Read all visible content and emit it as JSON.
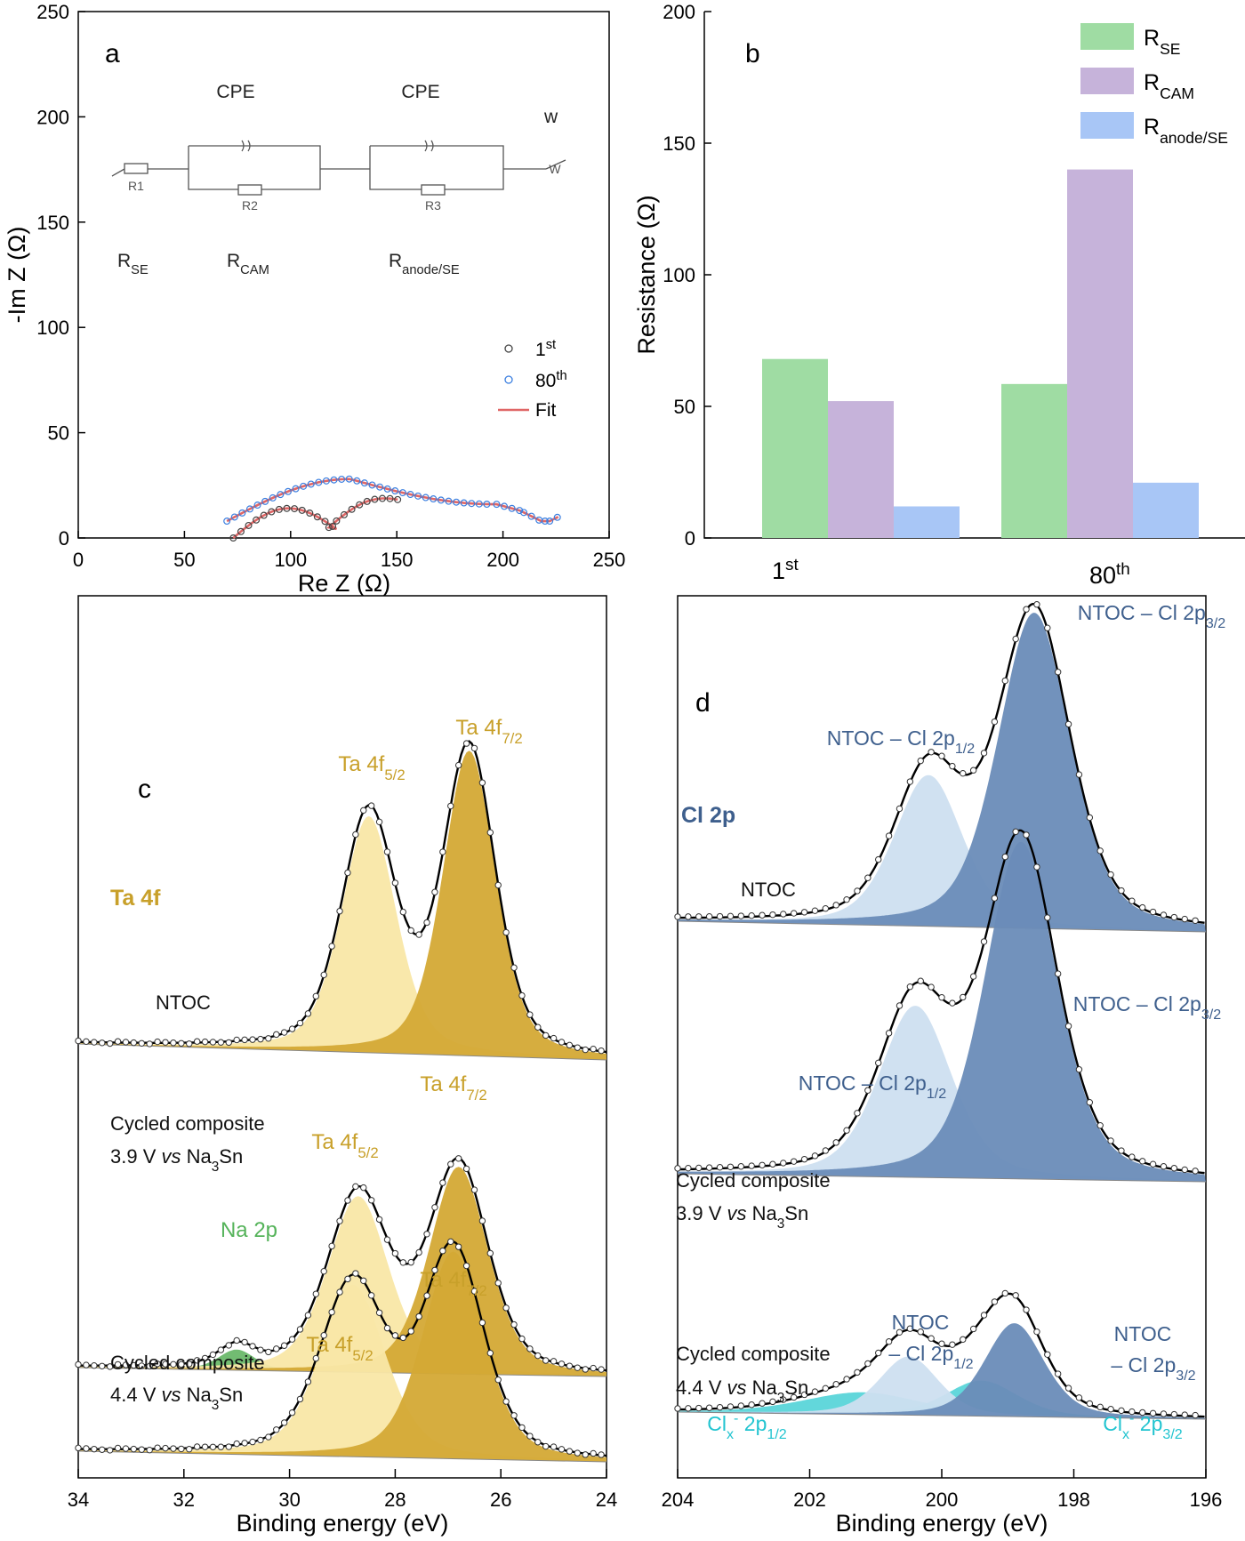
{
  "colors": {
    "se": "#9fdca3",
    "cam": "#c6b3da",
    "anode": "#a8c6f6",
    "ta_dark": "#d4a935",
    "ta_light": "#f9e7a6",
    "ta_label": "#c8a02a",
    "cl_dark": "#6a8cb8",
    "cl_light": "#cddff0",
    "cl_label": "#3e5f8d",
    "clx": "#2ec9cf",
    "clx_label": "#22c4d0",
    "na": "#6ab86a",
    "na_label": "#55b35a",
    "fit": "#e06666",
    "first": "#444444",
    "eightieth": "#3b7fe0"
  },
  "chart_data": [
    {
      "panel": "a",
      "type": "scatter",
      "xlabel": "Re Z (Ω)",
      "ylabel": "-Im Z (Ω)",
      "xlim": [
        0,
        250
      ],
      "ylim": [
        0,
        250
      ],
      "xticks": [
        "0",
        "50",
        "100",
        "150",
        "200",
        "250"
      ],
      "yticks": [
        "0",
        "50",
        "100",
        "150",
        "200",
        "250"
      ],
      "circuit": {
        "top_labels": [
          "CPE",
          "CPE",
          "w"
        ],
        "element_labels": [
          "R1",
          "R2",
          "R3",
          "W"
        ],
        "bottom_labels": [
          "R",
          "SE",
          "R",
          "CAM",
          "R",
          "anode/SE"
        ]
      },
      "legend": [
        {
          "name": "1",
          "sup": "st"
        },
        {
          "name": "80",
          "sup": "th"
        },
        {
          "name": "Fit"
        }
      ],
      "series": [
        {
          "name": "1st",
          "arc1": {
            "x0": 73,
            "x1": 122,
            "h": 12
          },
          "arc2": {
            "x0": 118,
            "x1": 152,
            "h": 12
          },
          "tail_x": 153
        },
        {
          "name": "80th",
          "arc": {
            "x0": 70,
            "x1": 222,
            "h": 28,
            "peak": 128
          },
          "tail": [
            [
              197,
              16
            ],
            [
              208,
              13
            ],
            [
              218,
              8
            ],
            [
              222,
              8
            ],
            [
              226,
              10
            ]
          ]
        }
      ]
    },
    {
      "panel": "b",
      "type": "bar",
      "ylabel": "Resistance (Ω)",
      "ylim": [
        0,
        200
      ],
      "yticks": [
        "0",
        "50",
        "100",
        "150",
        "200"
      ],
      "categories": [
        {
          "name": "1",
          "sup": "st"
        },
        {
          "name": "80",
          "sup": "th"
        }
      ],
      "series": [
        {
          "name": "R",
          "sub": "SE",
          "values": [
            68,
            58.5
          ]
        },
        {
          "name": "R",
          "sub": "CAM",
          "values": [
            52,
            140
          ]
        },
        {
          "name": "R",
          "sub": "anode/SE",
          "values": [
            12,
            21
          ]
        }
      ]
    },
    {
      "panel": "c",
      "type": "line",
      "title": "Ta 4f",
      "xlabel": "Binding energy (eV)",
      "xlim": [
        34,
        24
      ],
      "xticks": [
        "34",
        "32",
        "30",
        "28",
        "26",
        "24"
      ],
      "spectra": [
        {
          "sample": "NTOC",
          "peaks": [
            {
              "label": "Ta 4f",
              "sub": "5/2",
              "center": 28.5,
              "height": 1.0
            },
            {
              "label": "Ta 4f",
              "sub": "7/2",
              "center": 26.6,
              "height": 1.29
            }
          ]
        },
        {
          "sample": [
            "Cycled composite",
            "3.9 V vs Na",
            "3",
            "Sn"
          ],
          "peaks": [
            {
              "label": "Na 2p",
              "center": 31.0,
              "height": 0.1
            },
            {
              "label": "Ta 4f",
              "sub": "5/2",
              "center": 28.7,
              "height": 0.85
            },
            {
              "label": "Ta 4f",
              "sub": "7/2",
              "center": 26.8,
              "height": 1.0
            }
          ]
        },
        {
          "sample": [
            "Cycled composite",
            "4.4 V vs Na",
            "3",
            "Sn"
          ],
          "peaks": [
            {
              "label": "Ta 4f",
              "sub": "5/2",
              "center": 28.8,
              "height": 0.83
            },
            {
              "label": "Ta 4f",
              "sub": "7/2",
              "center": 26.9,
              "height": 1.0
            }
          ]
        }
      ]
    },
    {
      "panel": "d",
      "type": "line",
      "title": "Cl 2p",
      "xlabel": "Binding energy (eV)",
      "xlim": [
        204,
        196
      ],
      "xticks": [
        "204",
        "202",
        "200",
        "198",
        "196"
      ],
      "spectra": [
        {
          "sample": "NTOC",
          "peaks": [
            {
              "label": "NTOC – Cl 2p",
              "sub": "1/2",
              "center": 200.2
            },
            {
              "label": "NTOC – Cl 2p",
              "sub": "3/2",
              "center": 198.6
            }
          ]
        },
        {
          "sample": [
            "Cycled composite",
            "3.9 V vs Na",
            "3",
            "Sn"
          ],
          "peaks": [
            {
              "label": "NTOC – Cl 2p",
              "sub": "1/2",
              "center": 200.4
            },
            {
              "label": "NTOC – Cl 2p",
              "sub": "3/2",
              "center": 198.8
            }
          ]
        },
        {
          "sample": [
            "Cycled composite",
            "4.4 V vs Na",
            "3",
            "Sn"
          ],
          "peaks": [
            {
              "label": "NTOC – Cl 2p",
              "sub": "1/2",
              "center": 200.5
            },
            {
              "label": "NTOC – Cl 2p",
              "sub": "3/2",
              "center": 198.9
            },
            {
              "label": "Cl",
              "sub": "x",
              "sup": "-",
              "tail": " 2p",
              "sub2": "1/2",
              "center": 201.2
            },
            {
              "label": "Cl",
              "sub": "x",
              "sup": "-",
              "tail": " 2p",
              "sub2": "3/2",
              "center": 199.4
            }
          ]
        }
      ]
    }
  ]
}
